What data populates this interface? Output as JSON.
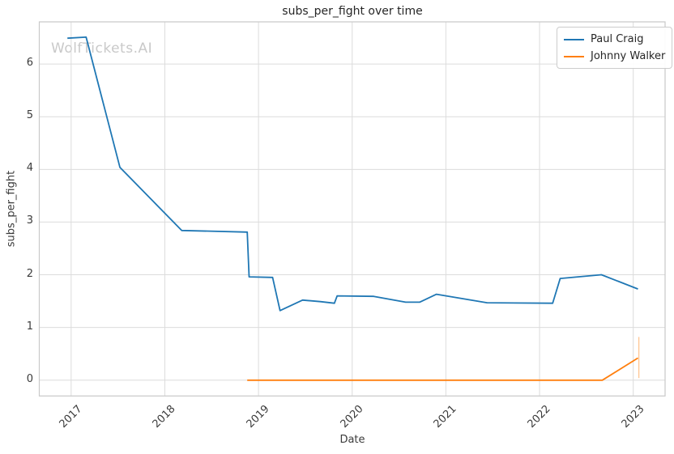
{
  "title": "subs_per_fight over time",
  "watermark": "WolfTickets.AI",
  "xlabel": "Date",
  "ylabel": "subs_per_fight",
  "legend": {
    "items": [
      {
        "label": "Paul Craig",
        "color": "#1f77b4"
      },
      {
        "label": "Johnny Walker",
        "color": "#ff7f0e"
      }
    ]
  },
  "colors": {
    "accent_blue": "#1f77b4",
    "accent_orange": "#ff7f0e",
    "grid": "#dcdcdc",
    "spine": "#c9c9c9",
    "tick_text": "#3b3b3b",
    "title_text": "#262626",
    "watermark_text": "#c9c9c9"
  },
  "chart_data": {
    "type": "line",
    "title": "subs_per_fight over time",
    "xlabel": "Date",
    "ylabel": "subs_per_fight",
    "xlim": [
      2016.66,
      2023.34
    ],
    "ylim": [
      -0.3,
      6.8
    ],
    "x_ticks": [
      2017,
      2018,
      2019,
      2020,
      2021,
      2022,
      2023
    ],
    "y_ticks": [
      0,
      1,
      2,
      3,
      4,
      5,
      6
    ],
    "grid": true,
    "legend_position": "upper right",
    "series": [
      {
        "name": "Paul Craig",
        "color": "#1f77b4",
        "x": [
          2016.96,
          2017.16,
          2017.52,
          2018.18,
          2018.88,
          2018.9,
          2019.15,
          2019.23,
          2019.47,
          2019.66,
          2019.81,
          2019.84,
          2020.23,
          2020.57,
          2020.72,
          2020.9,
          2021.44,
          2022.14,
          2022.22,
          2022.66,
          2023.05
        ],
        "y": [
          6.49,
          6.51,
          4.04,
          2.84,
          2.81,
          1.96,
          1.95,
          1.32,
          1.52,
          1.49,
          1.46,
          1.6,
          1.59,
          1.48,
          1.48,
          1.63,
          1.47,
          1.46,
          1.93,
          2.0,
          1.73
        ]
      },
      {
        "name": "Johnny Walker",
        "color": "#ff7f0e",
        "x": [
          2018.88,
          2022.67,
          2023.05
        ],
        "y": [
          0,
          0,
          0.42
        ],
        "error_bar": {
          "x": 2023.06,
          "low": 0.04,
          "high": 0.82
        }
      }
    ]
  }
}
